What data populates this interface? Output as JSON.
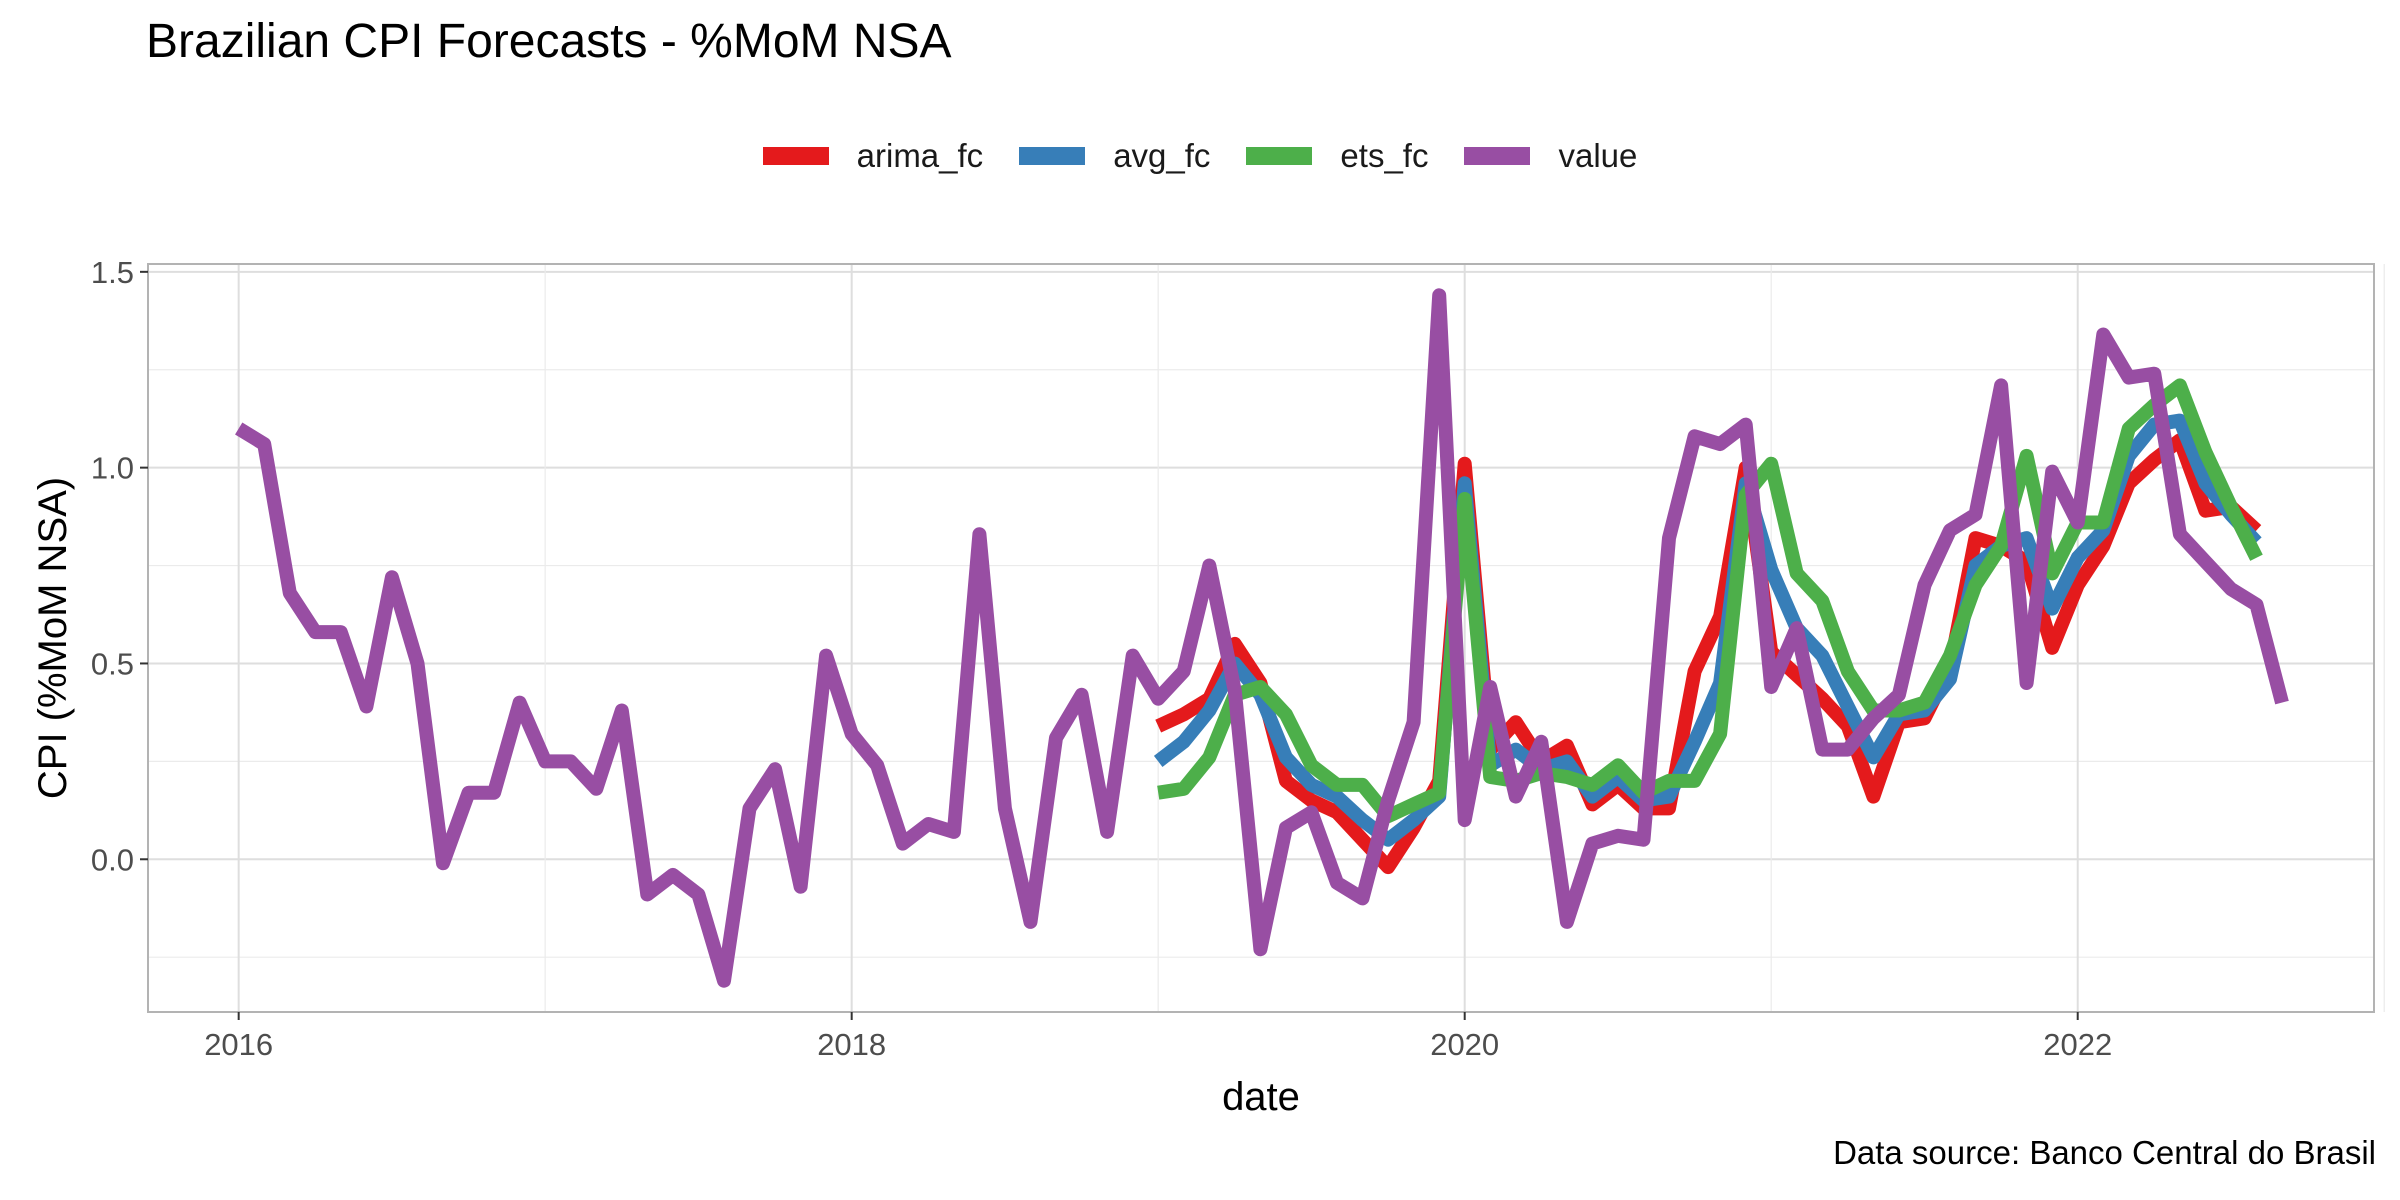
{
  "chart_data": {
    "type": "line",
    "title": "Brazilian CPI Forecasts - %MoM NSA",
    "xlabel": "date",
    "ylabel": "CPI (%MoM NSA)",
    "caption": "Data source: Banco Central do Brasil",
    "x_ticks": [
      "2016",
      "2018",
      "2020",
      "2022"
    ],
    "y_ticks": [
      "0.0",
      "0.5",
      "1.0",
      "1.5"
    ],
    "xlim": [
      "2015-10",
      "2023-01"
    ],
    "ylim": [
      -0.39,
      1.52
    ],
    "grid": true,
    "legend_position": "top",
    "series": [
      {
        "name": "arima_fc",
        "color": "#E41A1C",
        "start": "2019-01",
        "values": [
          0.34,
          0.37,
          0.41,
          0.55,
          0.45,
          0.2,
          0.15,
          0.12,
          0.05,
          -0.02,
          0.08,
          0.2,
          1.01,
          0.28,
          0.35,
          0.25,
          0.29,
          0.14,
          0.19,
          0.13,
          0.13,
          0.48,
          0.62,
          1.0,
          0.53,
          0.47,
          0.41,
          0.34,
          0.16,
          0.35,
          0.36,
          0.49,
          0.82,
          0.8,
          0.76,
          0.54,
          0.7,
          0.8,
          0.96,
          1.02,
          1.07,
          0.89,
          0.9,
          0.84
        ]
      },
      {
        "name": "avg_fc",
        "color": "#377EB8",
        "start": "2019-01",
        "values": [
          0.25,
          0.3,
          0.38,
          0.5,
          0.42,
          0.26,
          0.19,
          0.16,
          0.1,
          0.05,
          0.1,
          0.16,
          0.96,
          0.24,
          0.28,
          0.23,
          0.25,
          0.16,
          0.21,
          0.15,
          0.16,
          0.3,
          0.45,
          0.96,
          0.74,
          0.59,
          0.52,
          0.39,
          0.26,
          0.37,
          0.38,
          0.46,
          0.75,
          0.8,
          0.82,
          0.64,
          0.77,
          0.84,
          1.03,
          1.11,
          1.12,
          0.96,
          0.88,
          0.81
        ]
      },
      {
        "name": "ets_fc",
        "color": "#4DAF4A",
        "start": "2019-01",
        "values": [
          0.17,
          0.18,
          0.26,
          0.42,
          0.44,
          0.37,
          0.24,
          0.19,
          0.19,
          0.11,
          0.14,
          0.17,
          0.92,
          0.21,
          0.2,
          0.22,
          0.21,
          0.19,
          0.24,
          0.17,
          0.2,
          0.2,
          0.32,
          0.93,
          1.01,
          0.73,
          0.66,
          0.48,
          0.38,
          0.38,
          0.4,
          0.52,
          0.7,
          0.8,
          1.03,
          0.73,
          0.86,
          0.86,
          1.1,
          1.16,
          1.21,
          1.04,
          0.9,
          0.77
        ]
      },
      {
        "name": "value",
        "color": "#984EA3",
        "start": "2016-01",
        "values": [
          1.1,
          1.06,
          0.68,
          0.58,
          0.58,
          0.39,
          0.72,
          0.5,
          -0.01,
          0.17,
          0.17,
          0.4,
          0.25,
          0.25,
          0.18,
          0.38,
          -0.09,
          -0.04,
          -0.09,
          -0.31,
          0.13,
          0.23,
          -0.07,
          0.52,
          0.32,
          0.24,
          0.04,
          0.09,
          0.07,
          0.83,
          0.13,
          -0.16,
          0.31,
          0.42,
          0.07,
          0.52,
          0.41,
          0.48,
          0.75,
          0.43,
          -0.23,
          0.08,
          0.12,
          -0.06,
          -0.1,
          0.15,
          0.35,
          1.44,
          0.1,
          0.44,
          0.16,
          0.3,
          -0.16,
          0.04,
          0.06,
          0.05,
          0.82,
          1.08,
          1.06,
          1.11,
          0.44,
          0.59,
          0.28,
          0.28,
          0.36,
          0.42,
          0.7,
          0.84,
          0.88,
          1.21,
          0.45,
          0.99,
          0.86,
          1.34,
          1.23,
          1.24,
          0.83,
          0.76,
          0.69,
          0.65,
          0.4
        ]
      }
    ]
  }
}
